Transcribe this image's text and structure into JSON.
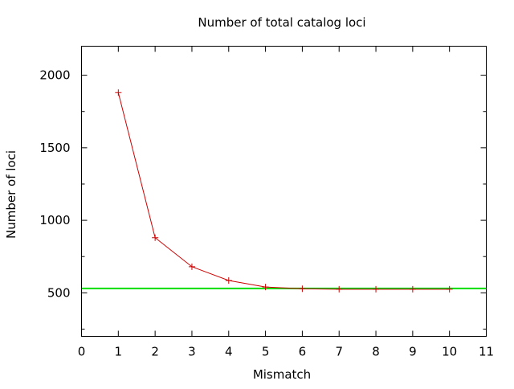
{
  "chart_data": {
    "type": "line",
    "title": "Number of total catalog loci",
    "xlabel": "Mismatch",
    "ylabel": "Number of loci",
    "xlim": [
      0,
      11
    ],
    "ylim": [
      200,
      2200
    ],
    "xticks": [
      0,
      1,
      2,
      3,
      4,
      5,
      6,
      7,
      8,
      9,
      10,
      11
    ],
    "yticks": [
      500,
      1000,
      1500,
      2000
    ],
    "grid": false,
    "legend": "none",
    "series": [
      {
        "x": [
          1,
          2,
          3,
          4,
          5,
          6,
          7,
          8,
          9,
          10
        ],
        "values": [
          1880,
          880,
          680,
          585,
          540,
          528,
          525,
          525,
          525,
          525
        ],
        "color": "#cc0000",
        "marker": "plus"
      }
    ],
    "reference_line": {
      "y": 530,
      "color": "#00dd00"
    }
  }
}
